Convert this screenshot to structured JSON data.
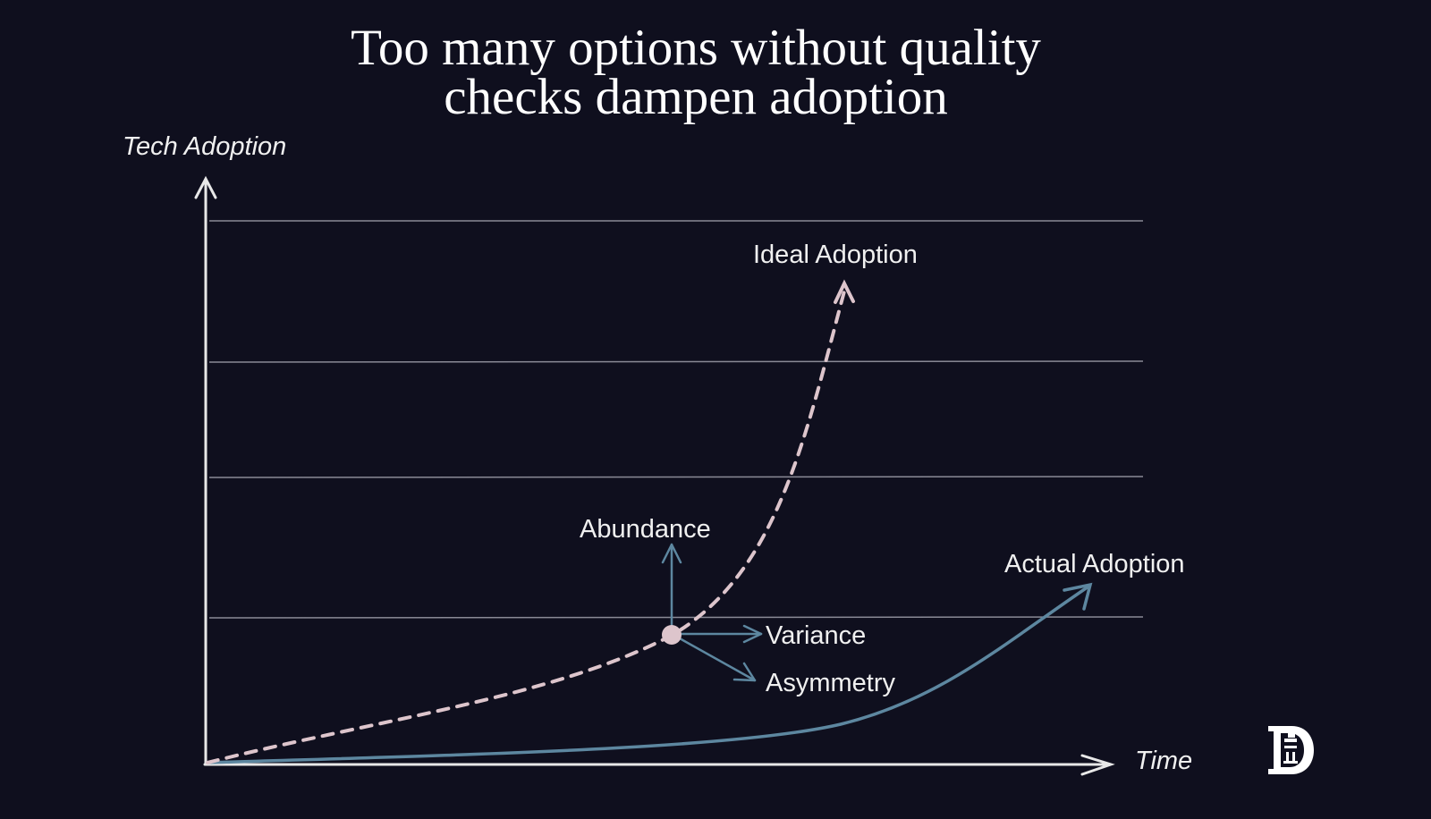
{
  "title": {
    "line1": "Too many options without quality",
    "line2": "checks dampen adoption"
  },
  "axes": {
    "y_label": "Tech Adoption",
    "x_label": "Time"
  },
  "curves": {
    "ideal": {
      "label": "Ideal Adoption",
      "color": "#ddc5cc",
      "style": "dashed"
    },
    "actual": {
      "label": "Actual Adoption",
      "color": "#5d87a0",
      "style": "solid"
    }
  },
  "vectors": {
    "up": "Abundance",
    "right": "Variance",
    "diagonal": "Asymmetry",
    "color": "#5d87a0",
    "point_color": "#ddc5cc"
  },
  "logo": {
    "name": "publisher-logo-icon"
  },
  "colors": {
    "background": "#0f0f1e",
    "axis": "#e8e8e8",
    "grid": "#8a8a96"
  }
}
